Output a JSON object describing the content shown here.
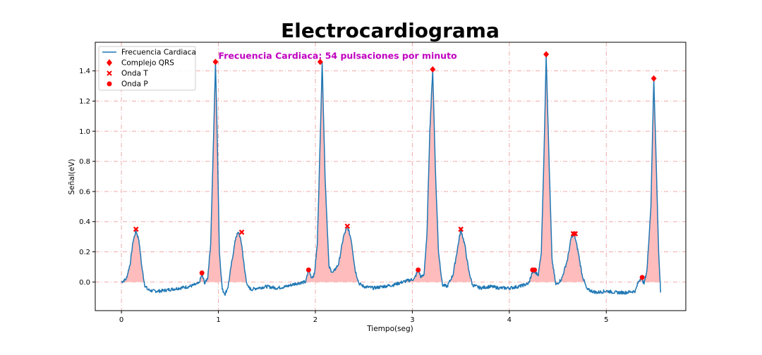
{
  "chart_data": {
    "type": "line",
    "title": "Electrocardiograma",
    "xlabel": "Tiempo(seg)",
    "ylabel": "Señal(eV)",
    "xlim": [
      -0.27,
      5.82
    ],
    "ylim": [
      -0.19,
      1.59
    ],
    "xticks": [
      0,
      1,
      2,
      3,
      4,
      5
    ],
    "yticks": [
      0.0,
      0.2,
      0.4,
      0.6,
      0.8,
      1.0,
      1.2,
      1.4
    ],
    "xtick_labels": [
      "0",
      "1",
      "2",
      "3",
      "4",
      "5"
    ],
    "ytick_labels": [
      "0.0",
      "0.2",
      "0.4",
      "0.6",
      "0.8",
      "1.0",
      "1.2",
      "1.4"
    ],
    "grid": true,
    "grid_style": "dash-dot",
    "legend_position": "top-left",
    "annotation": {
      "text": "Frecuencia Cardiaca: 54 pulsaciones por minuto",
      "x": 1.0,
      "y": 1.5,
      "color": "#bf00bf"
    },
    "colors": {
      "line": "#1f77b4",
      "fill": "#ffbcbc",
      "markers": "#ff0000",
      "grid": "#f2aaaa"
    },
    "series": [
      {
        "name": "Frecuencia Cardiaca",
        "kind": "line",
        "x": [
          0.0,
          0.05,
          0.09,
          0.12,
          0.15,
          0.18,
          0.21,
          0.24,
          0.27,
          0.32,
          0.4,
          0.5,
          0.6,
          0.7,
          0.8,
          0.83,
          0.86,
          0.89,
          0.92,
          0.95,
          0.97,
          0.99,
          1.01,
          1.04,
          1.07,
          1.1,
          1.13,
          1.18,
          1.21,
          1.24,
          1.27,
          1.3,
          1.34,
          1.4,
          1.5,
          1.6,
          1.7,
          1.8,
          1.9,
          1.93,
          1.96,
          1.99,
          2.02,
          2.05,
          2.07,
          2.1,
          2.14,
          2.18,
          2.24,
          2.29,
          2.33,
          2.37,
          2.41,
          2.45,
          2.5,
          2.6,
          2.7,
          2.8,
          2.9,
          3.02,
          3.06,
          3.09,
          3.12,
          3.15,
          3.18,
          3.21,
          3.24,
          3.27,
          3.31,
          3.36,
          3.42,
          3.46,
          3.5,
          3.54,
          3.58,
          3.62,
          3.7,
          3.8,
          3.9,
          4.0,
          4.1,
          4.2,
          4.24,
          4.27,
          4.3,
          4.33,
          4.36,
          4.38,
          4.41,
          4.44,
          4.48,
          4.54,
          4.6,
          4.64,
          4.67,
          4.71,
          4.75,
          4.8,
          4.9,
          5.0,
          5.1,
          5.2,
          5.3,
          5.33,
          5.36,
          5.39,
          5.42,
          5.46,
          5.49,
          5.51,
          5.54,
          5.56
        ],
        "y": [
          0.0,
          0.02,
          0.12,
          0.27,
          0.34,
          0.28,
          0.1,
          -0.02,
          -0.05,
          -0.06,
          -0.06,
          -0.05,
          -0.04,
          -0.03,
          -0.01,
          0.05,
          -0.01,
          0.03,
          0.25,
          0.95,
          1.46,
          0.9,
          0.2,
          -0.05,
          -0.08,
          -0.03,
          0.1,
          0.3,
          0.33,
          0.25,
          0.08,
          -0.03,
          -0.05,
          -0.04,
          -0.03,
          -0.04,
          -0.03,
          -0.01,
          0.0,
          0.08,
          0.03,
          0.05,
          0.25,
          0.95,
          1.46,
          0.7,
          0.1,
          0.06,
          0.12,
          0.3,
          0.37,
          0.28,
          0.08,
          -0.01,
          -0.03,
          -0.04,
          -0.03,
          -0.02,
          0.0,
          0.02,
          0.08,
          0.03,
          0.05,
          0.3,
          1.0,
          1.41,
          0.7,
          0.2,
          -0.02,
          -0.03,
          0.05,
          0.2,
          0.35,
          0.25,
          0.08,
          -0.02,
          -0.04,
          -0.03,
          -0.04,
          -0.04,
          -0.03,
          -0.01,
          0.07,
          0.06,
          0.05,
          0.2,
          0.9,
          1.51,
          0.8,
          0.15,
          -0.02,
          0.02,
          0.15,
          0.3,
          0.32,
          0.2,
          0.05,
          -0.05,
          -0.07,
          -0.06,
          -0.07,
          -0.07,
          -0.06,
          0.0,
          0.03,
          -0.01,
          0.08,
          0.5,
          1.35,
          0.9,
          0.2,
          -0.07
        ]
      },
      {
        "name": "Complejo QRS",
        "kind": "marker",
        "marker": "diamond",
        "x": [
          0.97,
          2.05,
          3.21,
          4.38,
          5.49
        ],
        "y": [
          1.46,
          1.46,
          1.41,
          1.51,
          1.35
        ]
      },
      {
        "name": "Onda T",
        "kind": "marker",
        "marker": "x",
        "x": [
          0.15,
          1.24,
          2.33,
          3.5,
          4.66,
          4.68
        ],
        "y": [
          0.35,
          0.33,
          0.37,
          0.35,
          0.32,
          0.32
        ]
      },
      {
        "name": "Onda P",
        "kind": "marker",
        "marker": "circle",
        "x": [
          0.83,
          1.93,
          3.06,
          4.24,
          4.26,
          5.37
        ],
        "y": [
          0.06,
          0.08,
          0.08,
          0.08,
          0.08,
          0.03
        ]
      }
    ]
  }
}
